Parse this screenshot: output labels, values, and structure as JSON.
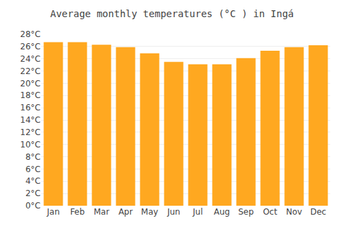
{
  "chart_data": {
    "type": "bar",
    "title": "Average monthly temperatures (°C ) in Ingá",
    "categories": [
      "Jan",
      "Feb",
      "Mar",
      "Apr",
      "May",
      "Jun",
      "Jul",
      "Aug",
      "Sep",
      "Oct",
      "Nov",
      "Dec"
    ],
    "values": [
      26.7,
      26.7,
      26.3,
      25.9,
      24.9,
      23.5,
      23.1,
      23.1,
      24.1,
      25.3,
      25.9,
      26.2
    ],
    "color": "#FFA820",
    "ylim": [
      0,
      28
    ],
    "yticks": [
      {
        "value": 0,
        "label": "0°C"
      },
      {
        "value": 2,
        "label": "2°C"
      },
      {
        "value": 4,
        "label": "4°C"
      },
      {
        "value": 6,
        "label": "6°C"
      },
      {
        "value": 8,
        "label": "8°C"
      },
      {
        "value": 10,
        "label": "10°C"
      },
      {
        "value": 12,
        "label": "12°C"
      },
      {
        "value": 14,
        "label": "14°C"
      },
      {
        "value": 16,
        "label": "16°C"
      },
      {
        "value": 18,
        "label": "18°C"
      },
      {
        "value": 20,
        "label": "20°C"
      },
      {
        "value": 22,
        "label": "22°C"
      },
      {
        "value": 24,
        "label": "24°C"
      },
      {
        "value": 26,
        "label": "26°C"
      },
      {
        "value": 28,
        "label": "28°C"
      }
    ],
    "grid": true
  }
}
